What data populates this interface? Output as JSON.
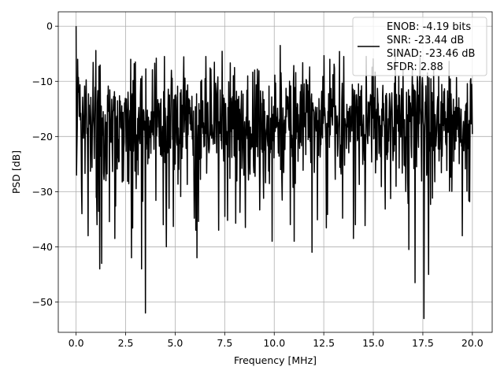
{
  "chart_data": {
    "type": "line",
    "title": "",
    "xlabel": "Frequency [MHz]",
    "ylabel": "PSD [dB]",
    "xlim": [
      -0.9,
      21.0
    ],
    "ylim": [
      -55.5,
      2.6
    ],
    "xticks": [
      0.0,
      2.5,
      5.0,
      7.5,
      10.0,
      12.5,
      15.0,
      17.5,
      20.0
    ],
    "xtick_labels": [
      "0.0",
      "2.5",
      "5.0",
      "7.5",
      "10.0",
      "12.5",
      "15.0",
      "17.5",
      "20.0"
    ],
    "yticks": [
      0,
      -10,
      -20,
      -30,
      -40,
      -50
    ],
    "ytick_labels": [
      "0",
      "−10",
      "−20",
      "−30",
      "−40",
      "−50"
    ],
    "grid": true,
    "legend_position": "top-right",
    "legend_lines": [
      "ENOB: -4.19 bits",
      "SNR: -23.44 dB",
      "SINAD: -23.46 dB",
      "SFDR: 2.88"
    ],
    "series": [
      {
        "color": "#000000",
        "x_range": [
          0.0,
          20.0
        ],
        "points": 1024,
        "description_stats": {
          "peak_at_zero_db": 0,
          "typical_max_db": -8,
          "typical_min_db": -27,
          "typical_mean_db": -16
        },
        "notable_points": [
          {
            "x": 0.0,
            "y": 0.0
          },
          {
            "x": 0.08,
            "y": -6
          },
          {
            "x": 0.3,
            "y": -34
          },
          {
            "x": 0.6,
            "y": -38
          },
          {
            "x": 1.05,
            "y": -36
          },
          {
            "x": 1.2,
            "y": -44
          },
          {
            "x": 1.3,
            "y": -43
          },
          {
            "x": 1.95,
            "y": -38.5
          },
          {
            "x": 2.75,
            "y": -34
          },
          {
            "x": 2.75,
            "y": -6
          },
          {
            "x": 3.0,
            "y": -6.5
          },
          {
            "x": 3.3,
            "y": -44
          },
          {
            "x": 2.8,
            "y": -42
          },
          {
            "x": 3.5,
            "y": -52
          },
          {
            "x": 4.4,
            "y": -37
          },
          {
            "x": 4.45,
            "y": -5.5
          },
          {
            "x": 4.4,
            "y": -36
          },
          {
            "x": 4.55,
            "y": -40
          },
          {
            "x": 6.1,
            "y": -42
          },
          {
            "x": 6.05,
            "y": -37
          },
          {
            "x": 6.55,
            "y": -5.5
          },
          {
            "x": 7.2,
            "y": -37
          },
          {
            "x": 8.0,
            "y": -7.5
          },
          {
            "x": 8.55,
            "y": -36.5
          },
          {
            "x": 9.9,
            "y": -39
          },
          {
            "x": 10.3,
            "y": -3.5
          },
          {
            "x": 11.0,
            "y": -39
          },
          {
            "x": 11.9,
            "y": -41
          },
          {
            "x": 12.8,
            "y": -6
          },
          {
            "x": 13.5,
            "y": -5.5
          },
          {
            "x": 14.0,
            "y": -38.5
          },
          {
            "x": 14.1,
            "y": -36
          },
          {
            "x": 16.8,
            "y": -40.5
          },
          {
            "x": 17.1,
            "y": -46.5
          },
          {
            "x": 17.55,
            "y": -53
          },
          {
            "x": 17.8,
            "y": -45
          },
          {
            "x": 19.5,
            "y": -38
          }
        ]
      }
    ]
  }
}
